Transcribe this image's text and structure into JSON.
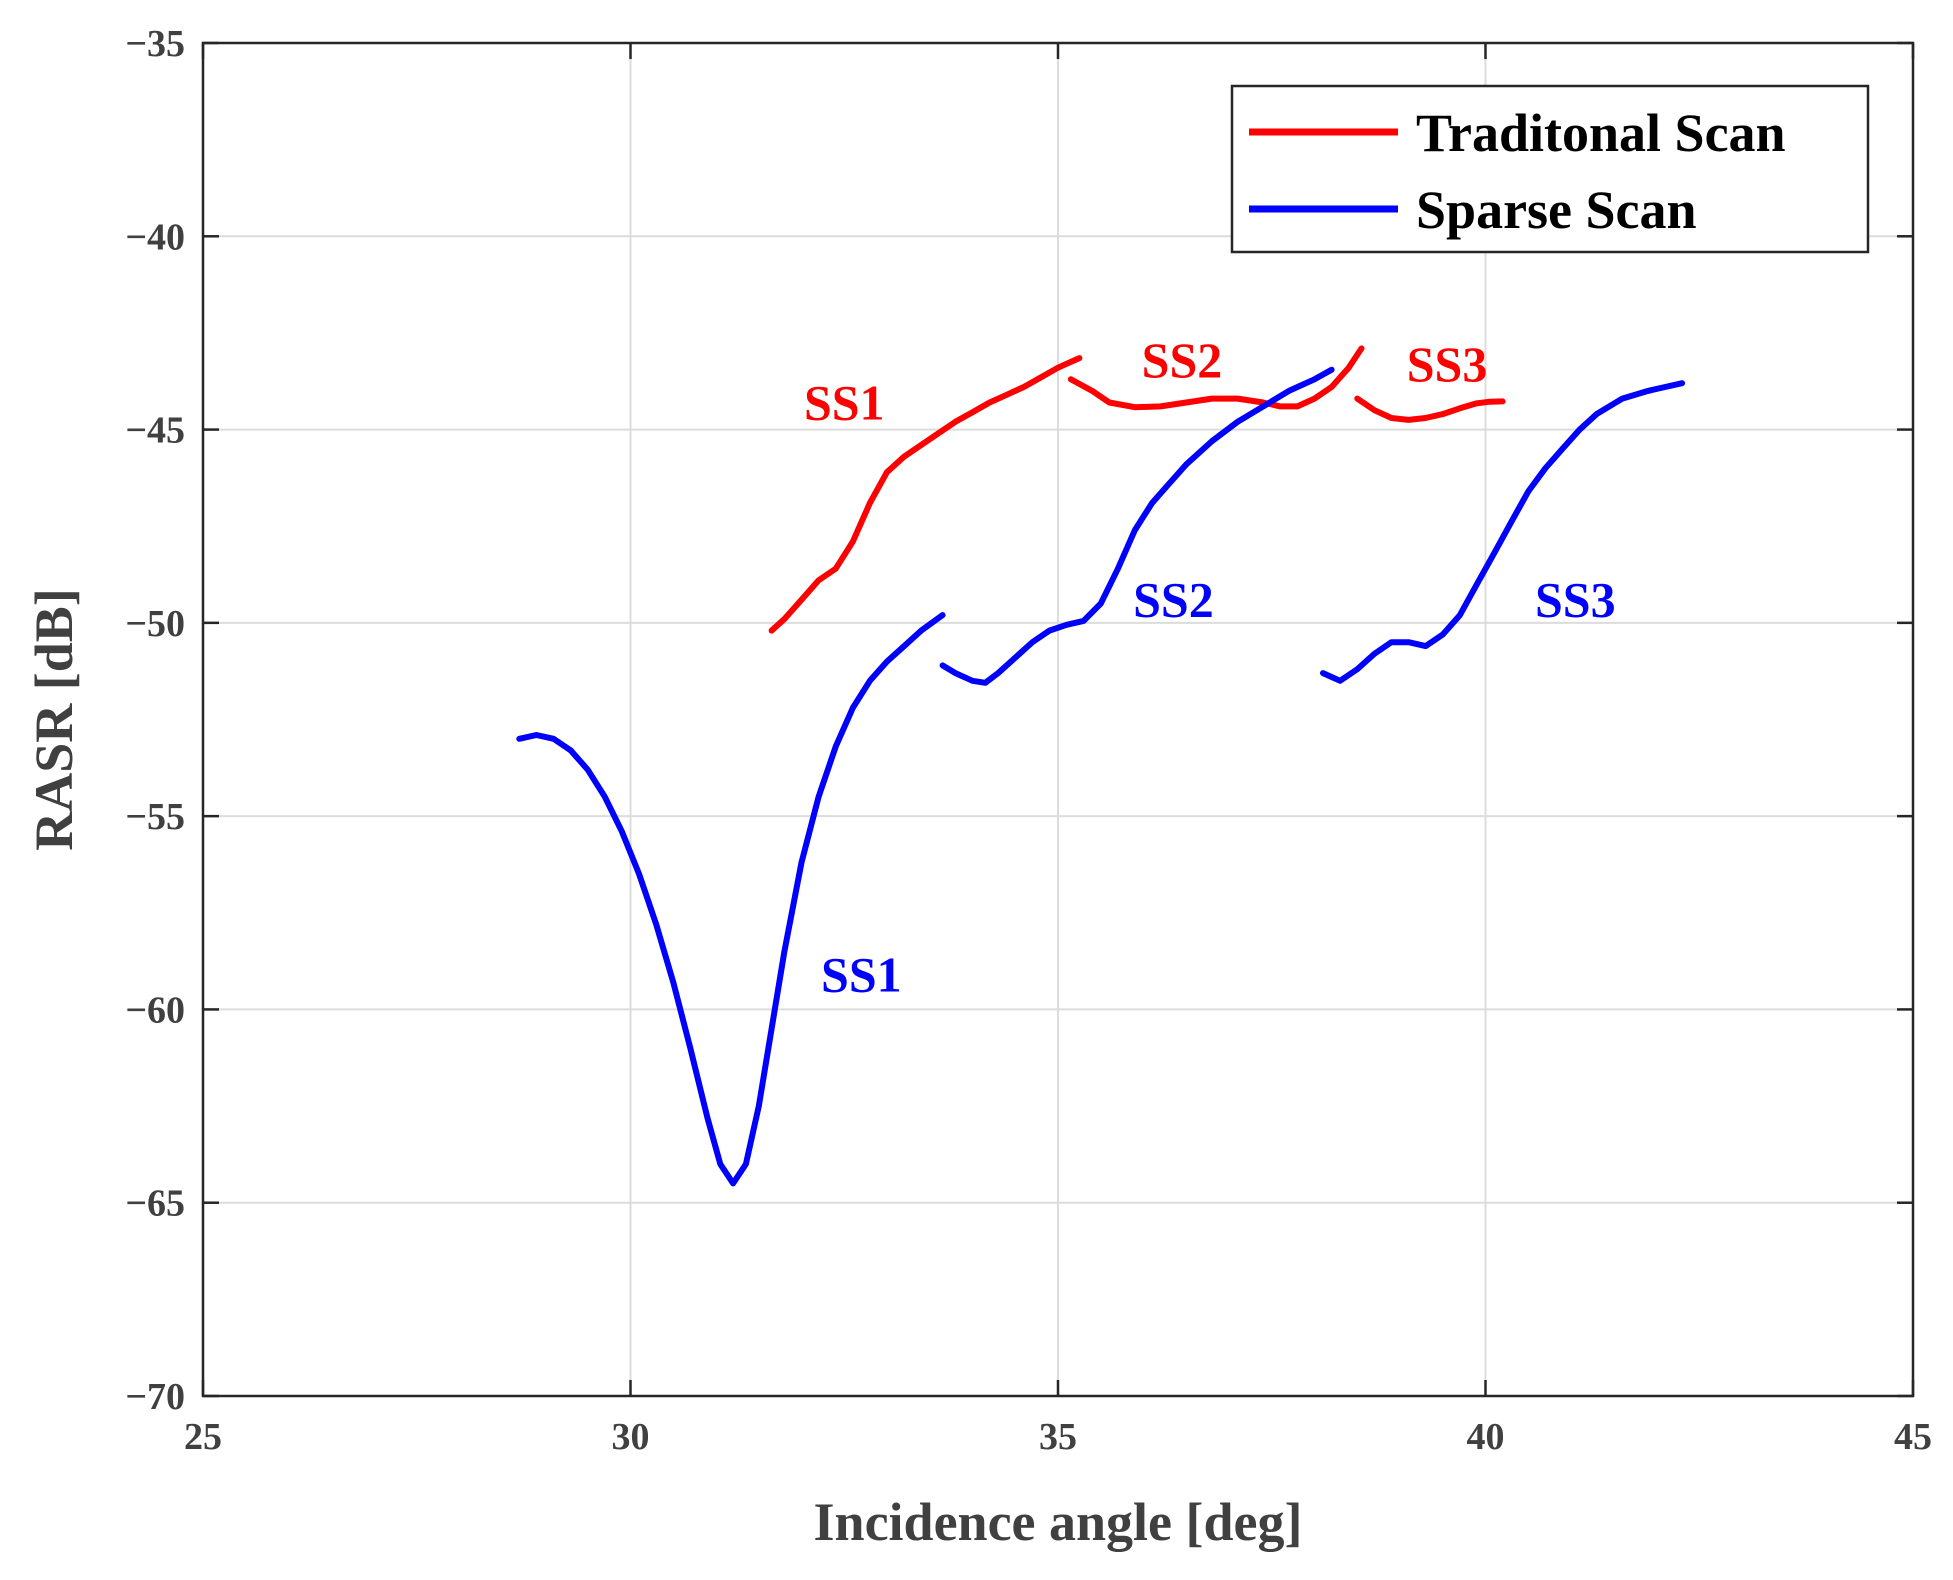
{
  "chart_data": {
    "type": "line",
    "title": "",
    "xlabel": "Incidence angle [deg]",
    "ylabel": "RASR [dB]",
    "xlim": [
      25,
      45
    ],
    "ylim": [
      -70,
      -35
    ],
    "xticks": [
      25,
      30,
      35,
      40,
      45
    ],
    "yticks": [
      -70,
      -65,
      -60,
      -55,
      -50,
      -45,
      -40,
      -35
    ],
    "grid": true,
    "legend_position": "top-right",
    "series": [
      {
        "name": "Traditonal Scan",
        "color": "#ff0000",
        "segments": [
          {
            "label": "SS1",
            "points": [
              [
                31.65,
                -50.2
              ],
              [
                31.8,
                -49.9
              ],
              [
                32.0,
                -49.4
              ],
              [
                32.2,
                -48.9
              ],
              [
                32.4,
                -48.6
              ],
              [
                32.6,
                -47.9
              ],
              [
                32.8,
                -46.9
              ],
              [
                33.0,
                -46.1
              ],
              [
                33.2,
                -45.7
              ],
              [
                33.4,
                -45.4
              ],
              [
                33.6,
                -45.1
              ],
              [
                33.8,
                -44.8
              ],
              [
                34.0,
                -44.55
              ],
              [
                34.2,
                -44.3
              ],
              [
                34.4,
                -44.1
              ],
              [
                34.6,
                -43.9
              ],
              [
                34.8,
                -43.65
              ],
              [
                35.0,
                -43.4
              ],
              [
                35.2,
                -43.2
              ],
              [
                35.25,
                -43.15
              ]
            ]
          },
          {
            "label": "SS2",
            "points": [
              [
                35.15,
                -43.7
              ],
              [
                35.4,
                -44.0
              ],
              [
                35.6,
                -44.3
              ],
              [
                35.9,
                -44.42
              ],
              [
                36.2,
                -44.4
              ],
              [
                36.5,
                -44.3
              ],
              [
                36.8,
                -44.2
              ],
              [
                37.1,
                -44.2
              ],
              [
                37.4,
                -44.3
              ],
              [
                37.6,
                -44.4
              ],
              [
                37.8,
                -44.4
              ],
              [
                38.0,
                -44.2
              ],
              [
                38.2,
                -43.9
              ],
              [
                38.4,
                -43.4
              ],
              [
                38.55,
                -42.9
              ]
            ]
          },
          {
            "label": "SS3",
            "points": [
              [
                38.5,
                -44.2
              ],
              [
                38.7,
                -44.5
              ],
              [
                38.9,
                -44.7
              ],
              [
                39.1,
                -44.75
              ],
              [
                39.3,
                -44.7
              ],
              [
                39.5,
                -44.6
              ],
              [
                39.7,
                -44.45
              ],
              [
                39.9,
                -44.32
              ],
              [
                40.05,
                -44.28
              ],
              [
                40.2,
                -44.27
              ]
            ]
          }
        ]
      },
      {
        "name": "Sparse Scan",
        "color": "#0000ff",
        "segments": [
          {
            "label": "SS1",
            "points": [
              [
                28.7,
                -53.0
              ],
              [
                28.9,
                -52.9
              ],
              [
                29.1,
                -53.0
              ],
              [
                29.3,
                -53.3
              ],
              [
                29.5,
                -53.8
              ],
              [
                29.7,
                -54.5
              ],
              [
                29.9,
                -55.4
              ],
              [
                30.1,
                -56.5
              ],
              [
                30.3,
                -57.8
              ],
              [
                30.5,
                -59.3
              ],
              [
                30.7,
                -61.0
              ],
              [
                30.9,
                -62.8
              ],
              [
                31.05,
                -64.0
              ],
              [
                31.2,
                -64.5
              ],
              [
                31.35,
                -64.0
              ],
              [
                31.5,
                -62.5
              ],
              [
                31.65,
                -60.5
              ],
              [
                31.8,
                -58.5
              ],
              [
                32.0,
                -56.2
              ],
              [
                32.2,
                -54.5
              ],
              [
                32.4,
                -53.2
              ],
              [
                32.6,
                -52.2
              ],
              [
                32.8,
                -51.5
              ],
              [
                33.0,
                -51.0
              ],
              [
                33.2,
                -50.6
              ],
              [
                33.4,
                -50.2
              ],
              [
                33.65,
                -49.8
              ]
            ]
          },
          {
            "label": "SS2",
            "points": [
              [
                33.65,
                -51.1
              ],
              [
                33.8,
                -51.3
              ],
              [
                34.0,
                -51.5
              ],
              [
                34.15,
                -51.55
              ],
              [
                34.3,
                -51.3
              ],
              [
                34.5,
                -50.9
              ],
              [
                34.7,
                -50.5
              ],
              [
                34.9,
                -50.2
              ],
              [
                35.1,
                -50.05
              ],
              [
                35.3,
                -49.95
              ],
              [
                35.5,
                -49.5
              ],
              [
                35.7,
                -48.6
              ],
              [
                35.9,
                -47.6
              ],
              [
                36.1,
                -46.9
              ],
              [
                36.3,
                -46.4
              ],
              [
                36.5,
                -45.9
              ],
              [
                36.8,
                -45.3
              ],
              [
                37.1,
                -44.8
              ],
              [
                37.4,
                -44.4
              ],
              [
                37.7,
                -44.0
              ],
              [
                38.0,
                -43.7
              ],
              [
                38.2,
                -43.45
              ]
            ]
          },
          {
            "label": "SS3",
            "points": [
              [
                38.1,
                -51.3
              ],
              [
                38.3,
                -51.5
              ],
              [
                38.5,
                -51.2
              ],
              [
                38.7,
                -50.8
              ],
              [
                38.9,
                -50.5
              ],
              [
                39.1,
                -50.5
              ],
              [
                39.3,
                -50.6
              ],
              [
                39.5,
                -50.3
              ],
              [
                39.7,
                -49.8
              ],
              [
                39.9,
                -49.0
              ],
              [
                40.1,
                -48.2
              ],
              [
                40.3,
                -47.4
              ],
              [
                40.5,
                -46.6
              ],
              [
                40.7,
                -46.0
              ],
              [
                40.9,
                -45.5
              ],
              [
                41.1,
                -45.0
              ],
              [
                41.3,
                -44.6
              ],
              [
                41.6,
                -44.2
              ],
              [
                41.9,
                -44.0
              ],
              [
                42.1,
                -43.9
              ],
              [
                42.3,
                -43.8
              ]
            ]
          }
        ]
      }
    ],
    "annotations": [
      {
        "text": "SS1",
        "x": 32.5,
        "y": -44.3,
        "color": "#ff0000"
      },
      {
        "text": "SS2",
        "x": 36.45,
        "y": -43.2,
        "color": "#ff0000"
      },
      {
        "text": "SS3",
        "x": 39.55,
        "y": -43.3,
        "color": "#ff0000"
      },
      {
        "text": "SS1",
        "x": 32.7,
        "y": -59.1,
        "color": "#0000ff"
      },
      {
        "text": "SS2",
        "x": 36.35,
        "y": -49.4,
        "color": "#0000ff"
      },
      {
        "text": "SS3",
        "x": 41.05,
        "y": -49.4,
        "color": "#0000ff"
      }
    ],
    "legend": [
      {
        "label": "Traditonal Scan",
        "color": "#ff0000"
      },
      {
        "label": "Sparse Scan",
        "color": "#0000ff"
      }
    ]
  }
}
